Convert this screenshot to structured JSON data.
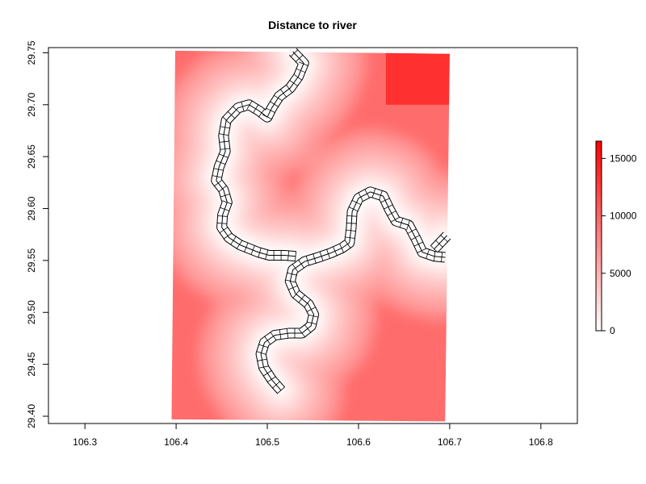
{
  "chart_data": {
    "type": "heatmap",
    "title": "Distance to river",
    "xlabel": "",
    "ylabel": "",
    "xlim": [
      106.26,
      106.84
    ],
    "ylim": [
      29.393,
      29.755
    ],
    "x_ticks": [
      106.3,
      106.4,
      106.5,
      106.6,
      106.7,
      106.8
    ],
    "x_tick_labels": [
      "106.3",
      "106.4",
      "106.5",
      "106.6",
      "106.7",
      "106.8"
    ],
    "y_ticks": [
      29.4,
      29.45,
      29.5,
      29.55,
      29.6,
      29.65,
      29.7,
      29.75
    ],
    "y_tick_labels": [
      "29.40",
      "29.45",
      "29.50",
      "29.55",
      "29.60",
      "29.65",
      "29.70",
      "29.75"
    ],
    "grid": false,
    "raster_extent": {
      "corners": [
        [
          106.399,
          29.752
        ],
        [
          106.7,
          29.749
        ],
        [
          106.695,
          29.395
        ],
        [
          106.395,
          29.397
        ]
      ]
    },
    "colorbar": {
      "min": 0,
      "max": 16500,
      "ticks": [
        0,
        5000,
        10000,
        15000
      ],
      "tick_labels": [
        "0",
        "5000",
        "10000",
        "15000"
      ],
      "low_color": "#ffffff",
      "high_color": "#ff0000"
    },
    "river_center": [
      [
        106.515,
        29.425
      ],
      [
        106.505,
        29.435
      ],
      [
        106.496,
        29.447
      ],
      [
        106.493,
        29.46
      ],
      [
        106.497,
        29.471
      ],
      [
        106.508,
        29.478
      ],
      [
        106.524,
        29.48
      ],
      [
        106.538,
        29.48
      ],
      [
        106.548,
        29.487
      ],
      [
        106.551,
        29.498
      ],
      [
        106.545,
        29.508
      ],
      [
        106.531,
        29.518
      ],
      [
        106.525,
        29.53
      ],
      [
        106.528,
        29.541
      ],
      [
        106.541,
        29.549
      ],
      [
        106.556,
        29.553
      ],
      [
        106.569,
        29.557
      ],
      [
        106.582,
        29.562
      ],
      [
        106.59,
        29.567
      ],
      [
        106.592,
        29.581
      ],
      [
        106.593,
        29.597
      ],
      [
        106.6,
        29.61
      ],
      [
        106.613,
        29.616
      ],
      [
        106.627,
        29.612
      ],
      [
        106.634,
        29.599
      ],
      [
        106.641,
        29.588
      ],
      [
        106.655,
        29.584
      ],
      [
        106.663,
        29.571
      ],
      [
        106.67,
        29.558
      ],
      [
        106.683,
        29.554
      ],
      [
        106.695,
        29.553
      ]
    ],
    "river_branch": [
      [
        106.531,
        29.554
      ],
      [
        106.519,
        29.555
      ],
      [
        106.502,
        29.555
      ],
      [
        106.49,
        29.558
      ],
      [
        106.47,
        29.565
      ],
      [
        106.458,
        29.572
      ],
      [
        106.45,
        29.582
      ],
      [
        106.451,
        29.594
      ],
      [
        106.456,
        29.606
      ],
      [
        106.452,
        29.618
      ],
      [
        106.444,
        29.627
      ],
      [
        106.447,
        29.64
      ],
      [
        106.454,
        29.655
      ],
      [
        106.452,
        29.67
      ],
      [
        106.455,
        29.685
      ],
      [
        106.468,
        29.697
      ],
      [
        106.48,
        29.7
      ],
      [
        106.491,
        29.694
      ],
      [
        106.5,
        29.688
      ],
      [
        106.505,
        29.697
      ],
      [
        106.513,
        29.708
      ],
      [
        106.525,
        29.716
      ],
      [
        106.534,
        29.727
      ],
      [
        106.54,
        29.74
      ],
      [
        106.528,
        29.751
      ]
    ],
    "river_spur": [
      [
        106.683,
        29.561
      ],
      [
        106.697,
        29.574
      ]
    ]
  }
}
